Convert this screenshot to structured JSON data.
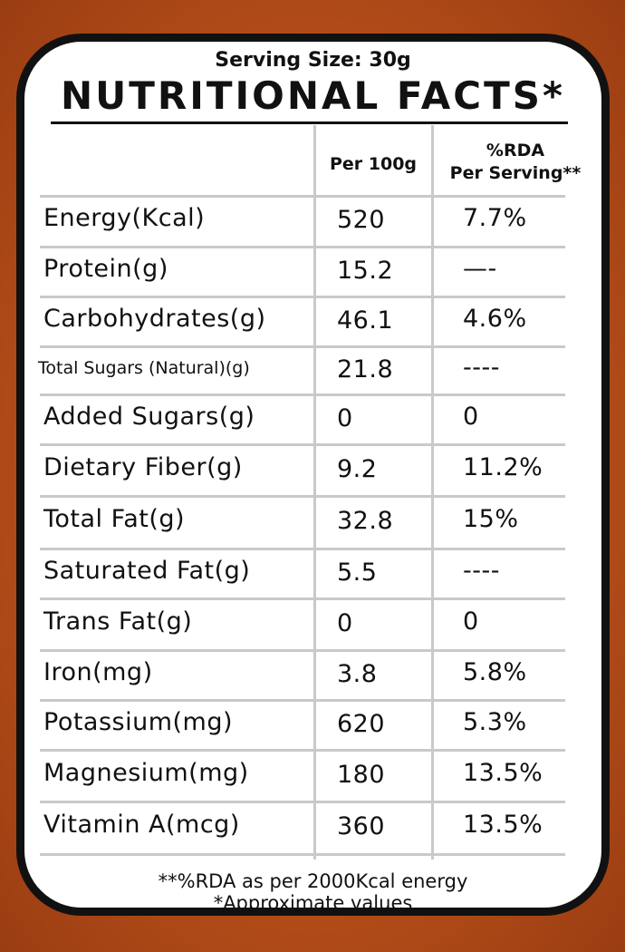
{
  "serving_size": "Serving Size: 30g",
  "title": "NUTRITIONAL FACTS*",
  "headers": {
    "per_100g": "Per 100g",
    "rda_line1": "%RDA",
    "rda_line2": "Per Serving**"
  },
  "rows": [
    {
      "name": "Energy(Kcal)",
      "per100": "520",
      "rda": "7.7%"
    },
    {
      "name": "Protein(g)",
      "per100": "15.2",
      "rda": "—-"
    },
    {
      "name": "Carbohydrates(g)",
      "per100": "46.1",
      "rda": "4.6%"
    },
    {
      "name": "Total Sugars (Natural)(g)",
      "per100": "21.8",
      "rda": "----"
    },
    {
      "name": "Added Sugars(g)",
      "per100": "0",
      "rda": "0"
    },
    {
      "name": "Dietary Fiber(g)",
      "per100": "9.2",
      "rda": "11.2%"
    },
    {
      "name": "Total Fat(g)",
      "per100": "32.8",
      "rda": "15%"
    },
    {
      "name": "Saturated Fat(g)",
      "per100": "5.5",
      "rda": "----"
    },
    {
      "name": "Trans Fat(g)",
      "per100": "0",
      "rda": "0"
    },
    {
      "name": "Iron(mg)",
      "per100": "3.8",
      "rda": "5.8%"
    },
    {
      "name": "Potassium(mg)",
      "per100": "620",
      "rda": "5.3%"
    },
    {
      "name": "Magnesium(mg)",
      "per100": "180",
      "rda": "13.5%"
    },
    {
      "name": "Vitamin A(mcg)",
      "per100": "360",
      "rda": "13.5%"
    }
  ],
  "footnotes": {
    "rda_note": "**%RDA as per 2000Kcal energy",
    "approx_note": "*Approximate values"
  }
}
